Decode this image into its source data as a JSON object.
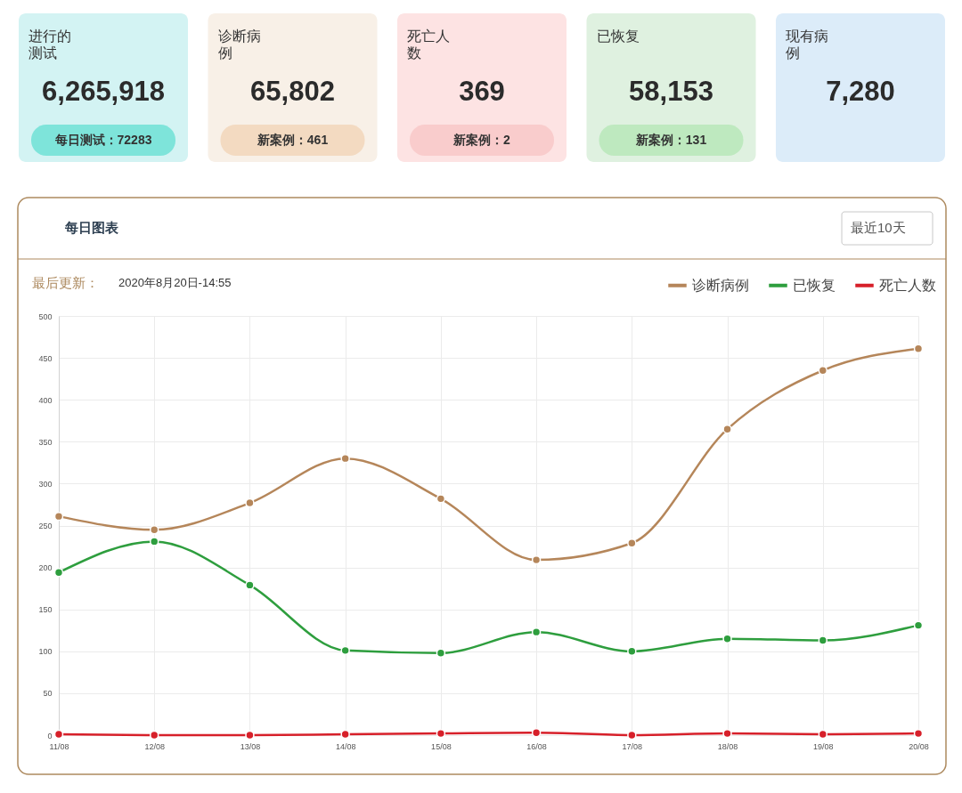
{
  "chart_data": [
    {
      "type": "other",
      "title": "进行的测试",
      "annotations": [
        "6,265,918",
        "每日测试：72283"
      ],
      "colors": [
        "#d3f3f3",
        "#7ee4da"
      ]
    },
    {
      "type": "other",
      "title": "诊断病例",
      "annotations": [
        "65,802",
        "新案例：461"
      ],
      "colors": [
        "#f8f0e7",
        "#f3dac1"
      ]
    },
    {
      "type": "other",
      "title": "死亡人数",
      "annotations": [
        "369",
        "新案例：2"
      ],
      "colors": [
        "#fde3e3",
        "#f9cccc"
      ]
    },
    {
      "type": "other",
      "title": "已恢复",
      "annotations": [
        "58,153",
        "新案例：131"
      ],
      "colors": [
        "#dff1e0",
        "#bee9bf"
      ]
    },
    {
      "type": "other",
      "title": "现有病例",
      "annotations": [
        "7,280"
      ],
      "colors": [
        "#dcecf9"
      ]
    },
    {
      "type": "line",
      "title": "每日图表",
      "annotations": [
        "最近10天",
        "最后更新：",
        "2020年8月20日-14:55"
      ],
      "categories": [
        "11/08",
        "12/08",
        "13/08",
        "14/08",
        "15/08",
        "16/08",
        "17/08",
        "18/08",
        "19/08",
        "20/08"
      ],
      "series": [
        {
          "name": "诊断病例",
          "color": "#b5865a",
          "values": [
            261,
            245,
            277,
            330,
            282,
            209,
            229,
            365,
            435,
            461
          ]
        },
        {
          "name": "已恢复",
          "color": "#2e9e3e",
          "values": [
            194,
            231,
            179,
            101,
            98,
            123,
            100,
            115,
            113,
            131
          ]
        },
        {
          "name": "死亡人数",
          "color": "#d7202a",
          "values": [
            1,
            0,
            0,
            1,
            2,
            3,
            0,
            2,
            1,
            2
          ]
        }
      ],
      "ylim": [
        0,
        500
      ],
      "yticks": [
        0,
        50,
        100,
        150,
        200,
        250,
        300,
        350,
        400,
        450,
        500
      ],
      "grid": true,
      "legend": "top right",
      "marker": "circle",
      "line_style": "solid"
    }
  ]
}
